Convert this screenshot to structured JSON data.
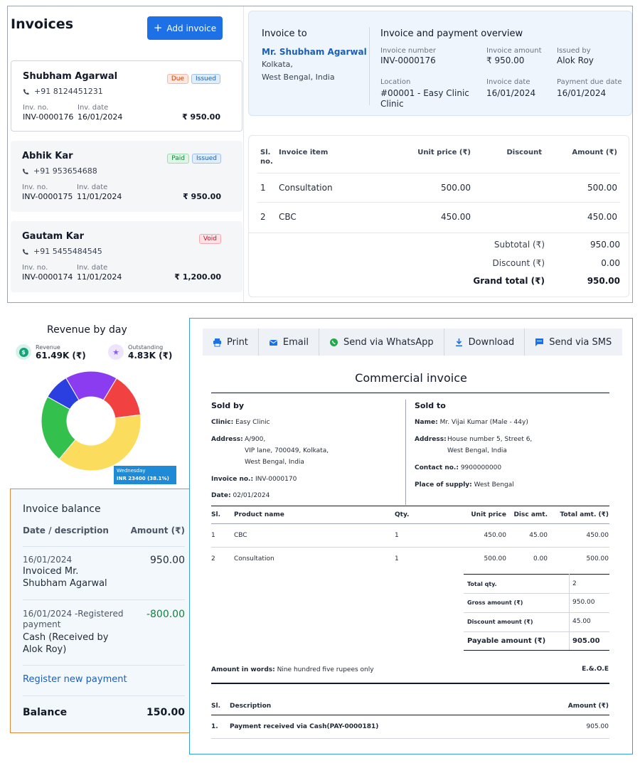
{
  "invoices": {
    "title": "Invoices",
    "add_button": "Add invoice",
    "inv_no_label": "Inv. no.",
    "inv_date_label": "Inv. date",
    "list": [
      {
        "name": "Shubham Agarwal",
        "phone": "+91 8124451231",
        "inv_no": "INV-0000176",
        "inv_date": "16/01/2024",
        "amount": "₹ 950.00",
        "badges": [
          {
            "text": "Due",
            "kind": "due"
          },
          {
            "text": "Issued",
            "kind": "issued"
          }
        ]
      },
      {
        "name": "Abhik Kar",
        "phone": "+91 953654688",
        "inv_no": "INV-0000175",
        "inv_date": "11/01/2024",
        "amount": "₹ 950.00",
        "badges": [
          {
            "text": "Paid",
            "kind": "paid"
          },
          {
            "text": "Issued",
            "kind": "issued"
          }
        ]
      },
      {
        "name": "Gautam Kar",
        "phone": "+91 5455484545",
        "inv_no": "INV-0000174",
        "inv_date": "11/01/2024",
        "amount": "₹ 1,200.00",
        "badges": [
          {
            "text": "Void",
            "kind": "void"
          }
        ]
      }
    ]
  },
  "overview": {
    "invoice_to_label": "Invoice to",
    "customer_name": "Mr. Shubham Agarwal",
    "address_line1": "Kolkata,",
    "address_line2": "West Bengal, India",
    "section_title": "Invoice and payment overview",
    "invoice_number_label": "Invoice number",
    "invoice_number": "INV-0000176",
    "invoice_amount_label": "Invoice amount",
    "invoice_amount": "₹ 950.00",
    "issued_by_label": "Issued by",
    "issued_by": "Alok Roy",
    "location_label": "Location",
    "location_line1": "#00001 - Easy Clinic",
    "location_line2": "Clinic",
    "invoice_date_label": "Invoice date",
    "invoice_date": "16/01/2024",
    "payment_due_label": "Payment due date",
    "payment_due": "16/01/2024"
  },
  "items_table": {
    "col_sl": "Sl.",
    "col_sl2": "no.",
    "col_item": "Invoice item",
    "col_unit": "Unit price (₹)",
    "col_discount": "Discount",
    "col_amount": "Amount (₹)",
    "rows": [
      {
        "sl": "1",
        "item": "Consultation",
        "unit": "500.00",
        "discount": "",
        "amount": "500.00"
      },
      {
        "sl": "2",
        "item": "CBC",
        "unit": "450.00",
        "discount": "",
        "amount": "450.00"
      }
    ],
    "subtotal_label": "Subtotal (₹)",
    "subtotal": "950.00",
    "discount_label": "Discount (₹)",
    "discount": "0.00",
    "grand_total_label": "Grand total (₹)",
    "grand_total": "950.00"
  },
  "revenue": {
    "title": "Revenue by day",
    "revenue_label": "Revenue",
    "revenue_value": "61.49K (₹)",
    "outstanding_label": "Outstanding",
    "outstanding_value": "4.83K (₹)",
    "tooltip_day": "Wednesday",
    "tooltip_value": "INR 23400 (38.1%)",
    "colors": {
      "revenue_icon": "#16a37a",
      "outstanding_icon": "#8b5cf6"
    }
  },
  "chart_data": {
    "type": "pie",
    "title": "Revenue by day",
    "donut": true,
    "slices": [
      {
        "name": "Wednesday",
        "value": 38.1,
        "color": "#fcdc5c"
      },
      {
        "name": "",
        "value": 22.0,
        "color": "#33c04d"
      },
      {
        "name": "",
        "value": 8.5,
        "color": "#2b3ee0"
      },
      {
        "name": "",
        "value": 17.0,
        "color": "#8b3cf0"
      },
      {
        "name": "",
        "value": 14.4,
        "color": "#f24141"
      }
    ]
  },
  "balance": {
    "title": "Invoice balance",
    "col_date": "Date / description",
    "col_amount": "Amount (₹)",
    "entries": [
      {
        "date": "16/01/2024",
        "desc_line1": "Invoiced Mr.",
        "desc_line2": "Shubham Agarwal",
        "amount": "950.00",
        "color": "#1f2937"
      },
      {
        "date": "16/01/2024 -Registered",
        "date2": "payment",
        "desc_line1": "Cash (Received by",
        "desc_line2": "Alok Roy)",
        "amount": "-800.00",
        "color": "#15803d"
      }
    ],
    "register_link": "Register new payment",
    "balance_label": "Balance",
    "balance_value": "150.00"
  },
  "commercial": {
    "toolbar": [
      {
        "label": "Print",
        "icon": "printer-icon"
      },
      {
        "label": "Email",
        "icon": "email-icon"
      },
      {
        "label": "Send via WhatsApp",
        "icon": "whatsapp-icon"
      },
      {
        "label": "Download",
        "icon": "download-icon"
      },
      {
        "label": "Send via SMS",
        "icon": "sms-icon"
      }
    ],
    "title": "Commercial invoice",
    "sold_by": "Sold by",
    "sold_to": "Sold to",
    "clinic_label": "Clinic:",
    "clinic": "Easy Clinic",
    "address_label": "Address:",
    "address_l1": "A/900,",
    "address_l2": "VIP lane, 700049, Kolkata,",
    "address_l3": "West Bengal, India",
    "invoice_no_label": "Invoice no.:",
    "invoice_no": "INV-0000170",
    "date_label": "Date:",
    "date": "02/01/2024",
    "name_label": "Name:",
    "name": "Mr. Vijai Kumar (Male - 44y)",
    "to_address_label": "Address:",
    "to_address_l1": "House number 5, Street 6,",
    "to_address_l2": "West Bengal, India",
    "contact_label": "Contact no.:",
    "contact": "9900000000",
    "supply_label": "Place of supply:",
    "supply": "West Bengal",
    "col_sl": "Sl.",
    "col_product": "Product name",
    "col_qty": "Qty.",
    "col_unit": "Unit price",
    "col_disc": "Disc amt.",
    "col_total": "Total amt. (₹)",
    "products": [
      {
        "sl": "1",
        "name": "CBC",
        "qty": "1",
        "unit": "450.00",
        "disc": "45.00",
        "total": "450.00"
      },
      {
        "sl": "2",
        "name": "Consultation",
        "qty": "1",
        "unit": "500.00",
        "disc": "0.00",
        "total": "500.00"
      }
    ],
    "total_qty_label": "Total qty.",
    "total_qty": "2",
    "gross_label": "Gross amount (₹)",
    "gross": "950.00",
    "discount_label": "Discount amount (₹)",
    "discount": "45.00",
    "payable_label": "Payable amount (₹)",
    "payable": "905.00",
    "words_label": "Amount in words:",
    "words": "Nine hundred five rupees only",
    "eoe": "E.&.O.E",
    "pay_col_sl": "Sl.",
    "pay_col_desc": "Description",
    "pay_col_amount": "Amount (₹)",
    "payment_sl": "1.",
    "payment_desc": "Payment received via Cash(PAY-0000181)",
    "payment_amount": "905.00"
  }
}
